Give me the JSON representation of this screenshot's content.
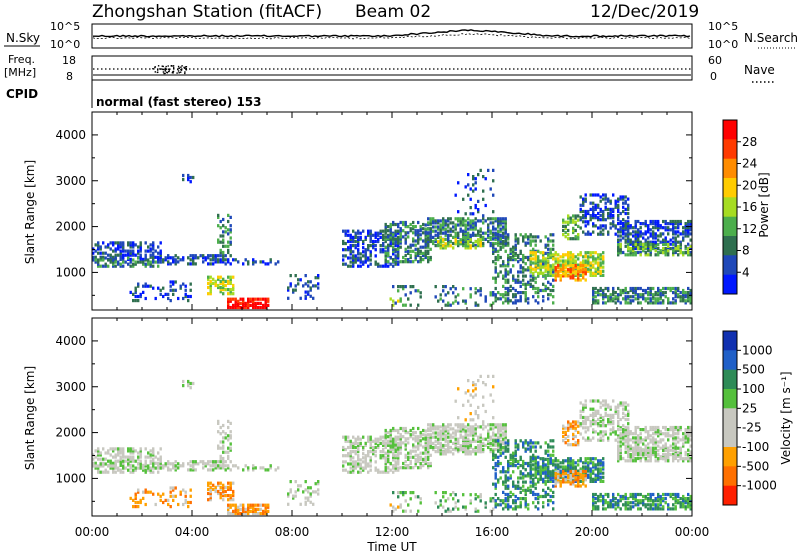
{
  "header": {
    "title": "Zhongshan Station (fitACF)",
    "beam": "Beam 02",
    "date": "12/Dec/2019"
  },
  "noise_panel": {
    "left_label": "N.Sky",
    "right_label": "N.Search",
    "left_ticks": [
      "10^5",
      "10^0"
    ],
    "right_ticks": [
      "10^5",
      "10^0"
    ]
  },
  "freq_panel": {
    "left_label_1": "Freq.",
    "left_label_2": "[MHz]",
    "right_label": "Nave",
    "left_ticks": [
      "18",
      "8"
    ],
    "right_ticks": [
      "60",
      "0"
    ]
  },
  "cpid": {
    "label": "CPID",
    "mode_text": "normal (fast stereo) 153"
  },
  "colors": {
    "power_scale": [
      "#0018ff",
      "#1f48b8",
      "#2f6f4f",
      "#4cae4c",
      "#a6dc22",
      "#ffcc00",
      "#ff8c00",
      "#ff3a00",
      "#ff0000"
    ],
    "velocity_scale": [
      "#1030b0",
      "#2060c8",
      "#2e8b57",
      "#55c03c",
      "#c8c8c0",
      "#c8c8c0",
      "#ffa000",
      "#ff7000",
      "#ff2000"
    ]
  },
  "chart_data": [
    {
      "type": "heatmap",
      "title": "",
      "xlabel": "Time UT",
      "ylabel": "Slant Range [km]",
      "x_ticks": [
        "00:00",
        "04:00",
        "08:00",
        "12:00",
        "16:00",
        "20:00",
        "00:00"
      ],
      "y_ticks": [
        "1000",
        "2000",
        "3000",
        "4000"
      ],
      "xlim_hours": [
        0,
        24
      ],
      "ylim_km": [
        180,
        4500
      ],
      "colorbar": {
        "label": "Power [dB]",
        "tick_labels": [
          "4",
          "8",
          "12",
          "16",
          "20",
          "24",
          "28"
        ],
        "range": [
          0,
          30
        ]
      }
    },
    {
      "type": "heatmap",
      "title": "",
      "xlabel": "Time UT",
      "ylabel": "Slant Range [km]",
      "x_ticks": [
        "00:00",
        "04:00",
        "08:00",
        "12:00",
        "16:00",
        "20:00",
        "00:00"
      ],
      "y_ticks": [
        "1000",
        "2000",
        "3000",
        "4000"
      ],
      "xlim_hours": [
        0,
        24
      ],
      "ylim_km": [
        180,
        4500
      ],
      "colorbar": {
        "label": "Velocity [m s⁻¹]",
        "tick_labels": [
          "1000",
          "500",
          "100",
          "25",
          "-25",
          "-100",
          "-500",
          "-1000"
        ]
      }
    }
  ]
}
